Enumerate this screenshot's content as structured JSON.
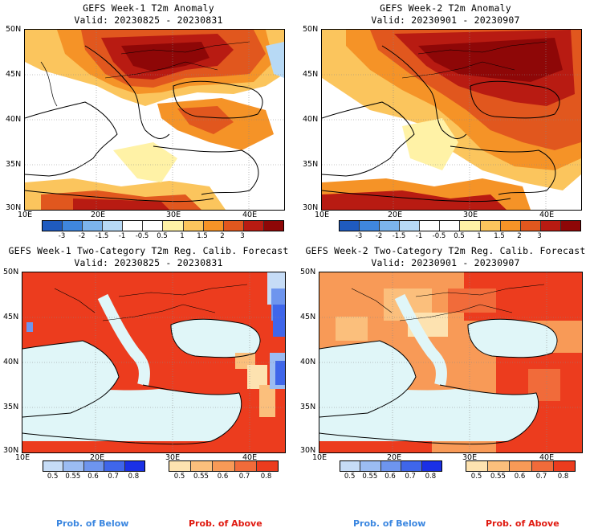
{
  "palette": {
    "anomaly": [
      "#1f5bbf",
      "#3f86dd",
      "#7cb4ec",
      "#b7d9f5",
      "#ffffff",
      "#ffffff",
      "#fff2a6",
      "#fbc55d",
      "#f59327",
      "#e1571e",
      "#b81b12",
      "#8e0707"
    ],
    "prob_below": [
      "#c6dcf6",
      "#9bbcf2",
      "#6e95ee",
      "#3f66ea",
      "#1a30e6"
    ],
    "prob_above": [
      "#fde2b0",
      "#fbbf7c",
      "#f89a57",
      "#f16b3a",
      "#ec3c1e"
    ]
  },
  "panels": [
    {
      "id": "week1-anomaly",
      "title": "GEFS Week-1 T2m Anomaly",
      "valid": "Valid: 20230825 - 20230831",
      "type": "anomaly",
      "lat_labels": [
        "50N",
        "45N",
        "40N",
        "35N",
        "30N"
      ],
      "lon_labels": [
        "10E",
        "20E",
        "30E",
        "40E"
      ],
      "colorbar_labels": [
        "-3",
        "-2",
        "-1.5",
        "-1",
        "-0.5",
        "0.5",
        "1",
        "1.5",
        "2",
        "3"
      ]
    },
    {
      "id": "week2-anomaly",
      "title": "GEFS Week-2 T2m Anomaly",
      "valid": "Valid: 20230901 - 20230907",
      "type": "anomaly",
      "lat_labels": [
        "50N",
        "45N",
        "40N",
        "35N",
        "30N"
      ],
      "lon_labels": [
        "10E",
        "20E",
        "30E",
        "40E"
      ],
      "colorbar_labels": [
        "-3",
        "-2",
        "-1.5",
        "-1",
        "-0.5",
        "0.5",
        "1",
        "1.5",
        "2",
        "3"
      ]
    },
    {
      "id": "week1-prob",
      "title": "GEFS Week-1 Two-Category T2m Reg. Calib. Forecast",
      "valid": "Valid: 20230825 - 20230831",
      "type": "prob",
      "lat_labels": [
        "50N",
        "45N",
        "40N",
        "35N",
        "30N"
      ],
      "lon_labels": [
        "10E",
        "20E",
        "30E",
        "40E"
      ],
      "below_labels": [
        "0.5",
        "0.55",
        "0.6",
        "0.7",
        "0.8"
      ],
      "above_labels": [
        "0.5",
        "0.55",
        "0.6",
        "0.7",
        "0.8"
      ],
      "below_title": "Prob. of Below",
      "above_title": "Prob. of Above"
    },
    {
      "id": "week2-prob",
      "title": "GEFS Week-2 Two-Category T2m Reg. Calib. Forecast",
      "valid": "Valid: 20230901 - 20230907",
      "type": "prob",
      "lat_labels": [
        "50N",
        "45N",
        "40N",
        "35N",
        "30N"
      ],
      "lon_labels": [
        "10E",
        "20E",
        "30E",
        "40E"
      ],
      "below_labels": [
        "0.5",
        "0.55",
        "0.6",
        "0.7",
        "0.8"
      ],
      "above_labels": [
        "0.5",
        "0.55",
        "0.6",
        "0.7",
        "0.8"
      ],
      "below_title": "Prob. of Below",
      "above_title": "Prob. of Above"
    }
  ]
}
